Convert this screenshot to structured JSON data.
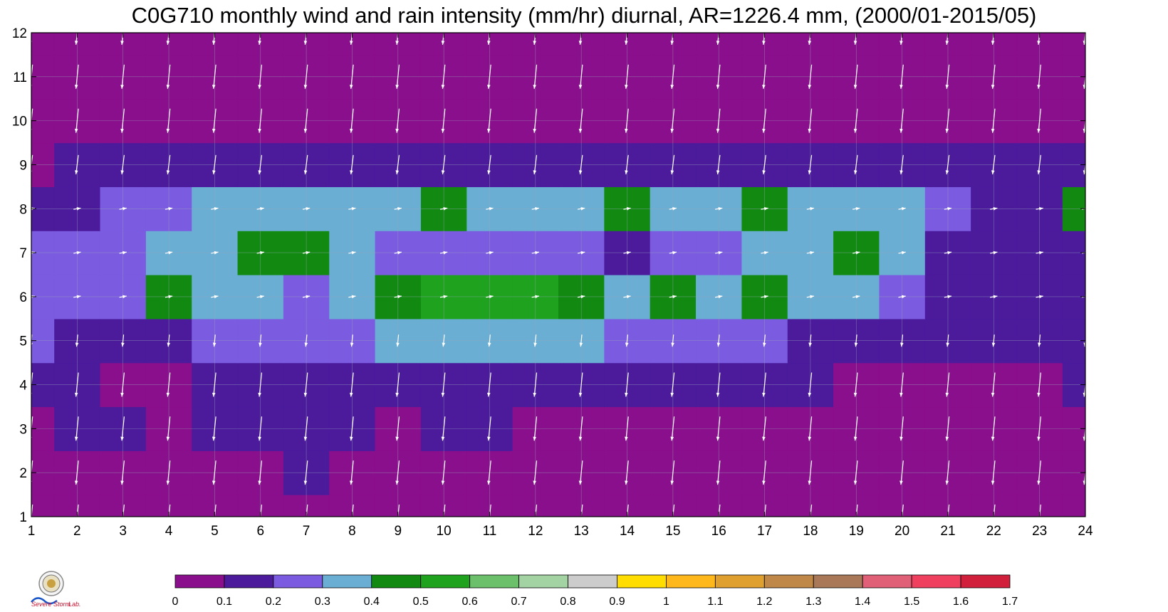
{
  "chart_data": {
    "type": "heatmap",
    "title": "C0G710 monthly wind and rain intensity (mm/hr) diurnal, AR=1226.4 mm, (2000/01-2015/05)",
    "xlabel": "",
    "ylabel": "",
    "x_ticks": [
      1,
      2,
      3,
      4,
      5,
      6,
      7,
      8,
      9,
      10,
      11,
      12,
      13,
      14,
      15,
      16,
      17,
      18,
      19,
      20,
      21,
      22,
      23,
      24
    ],
    "y_ticks": [
      1,
      2,
      3,
      4,
      5,
      6,
      7,
      8,
      9,
      10,
      11,
      12
    ],
    "xlim": [
      1,
      24
    ],
    "ylim": [
      1,
      12
    ],
    "grid": true,
    "colorbar": {
      "levels": [
        "0",
        "0.1",
        "0.2",
        "0.3",
        "0.4",
        "0.5",
        "0.6",
        "0.7",
        "0.8",
        "0.9",
        "1",
        "1.1",
        "1.2",
        "1.3",
        "1.4",
        "1.5",
        "1.6",
        "1.7"
      ],
      "colors": [
        "#8a0f8c",
        "#4b1b9c",
        "#7b5be0",
        "#6aaed4",
        "#128a12",
        "#1fa31f",
        "#6cc06c",
        "#a3d3a3",
        "#cccccc",
        "#ffdd00",
        "#ffb81c",
        "#e0a030",
        "#c08848",
        "#a87858",
        "#e06078",
        "#f04060",
        "#d0203c"
      ]
    },
    "rows": [
      {
        "month": 1,
        "values": [
          0.05,
          0.05,
          0.05,
          0.05,
          0.05,
          0.05,
          0.05,
          0.05,
          0.05,
          0.05,
          0.05,
          0.05,
          0.05,
          0.05,
          0.05,
          0.05,
          0.05,
          0.05,
          0.05,
          0.05,
          0.05,
          0.05,
          0.05,
          0.05
        ]
      },
      {
        "month": 2,
        "values": [
          0.05,
          0.05,
          0.05,
          0.05,
          0.05,
          0.05,
          0.12,
          0.05,
          0.05,
          0.05,
          0.05,
          0.05,
          0.05,
          0.05,
          0.05,
          0.05,
          0.05,
          0.05,
          0.05,
          0.05,
          0.05,
          0.05,
          0.05,
          0.05
        ]
      },
      {
        "month": 3,
        "values": [
          0.08,
          0.12,
          0.12,
          0.05,
          0.12,
          0.12,
          0.12,
          0.12,
          0.08,
          0.12,
          0.12,
          0.08,
          0.05,
          0.05,
          0.05,
          0.05,
          0.08,
          0.05,
          0.05,
          0.05,
          0.05,
          0.05,
          0.05,
          0.05
        ]
      },
      {
        "month": 4,
        "values": [
          0.15,
          0.15,
          0.05,
          0.05,
          0.15,
          0.15,
          0.15,
          0.15,
          0.15,
          0.15,
          0.15,
          0.15,
          0.12,
          0.12,
          0.12,
          0.12,
          0.15,
          0.12,
          0.08,
          0.05,
          0.08,
          0.05,
          0.05,
          0.12
        ]
      },
      {
        "month": 5,
        "values": [
          0.25,
          0.15,
          0.15,
          0.15,
          0.25,
          0.25,
          0.25,
          0.25,
          0.35,
          0.35,
          0.35,
          0.35,
          0.35,
          0.25,
          0.25,
          0.25,
          0.25,
          0.15,
          0.15,
          0.15,
          0.15,
          0.15,
          0.15,
          0.15
        ]
      },
      {
        "month": 6,
        "values": [
          0.25,
          0.25,
          0.25,
          0.42,
          0.35,
          0.35,
          0.25,
          0.35,
          0.45,
          0.55,
          0.55,
          0.58,
          0.45,
          0.35,
          0.42,
          0.35,
          0.42,
          0.35,
          0.35,
          0.25,
          0.15,
          0.15,
          0.15,
          0.15
        ]
      },
      {
        "month": 7,
        "values": [
          0.25,
          0.25,
          0.25,
          0.35,
          0.35,
          0.42,
          0.42,
          0.35,
          0.25,
          0.25,
          0.25,
          0.25,
          0.25,
          0.15,
          0.25,
          0.25,
          0.35,
          0.35,
          0.42,
          0.35,
          0.15,
          0.15,
          0.15,
          0.15
        ]
      },
      {
        "month": 8,
        "values": [
          0.15,
          0.15,
          0.25,
          0.25,
          0.35,
          0.35,
          0.35,
          0.35,
          0.35,
          0.45,
          0.35,
          0.35,
          0.35,
          0.45,
          0.35,
          0.35,
          0.45,
          0.35,
          0.35,
          0.35,
          0.25,
          0.15,
          0.15,
          0.45
        ]
      },
      {
        "month": 9,
        "values": [
          0.05,
          0.15,
          0.15,
          0.15,
          0.15,
          0.15,
          0.15,
          0.15,
          0.15,
          0.15,
          0.15,
          0.15,
          0.15,
          0.15,
          0.15,
          0.15,
          0.15,
          0.15,
          0.15,
          0.15,
          0.15,
          0.15,
          0.15,
          0.15
        ]
      },
      {
        "month": 10,
        "values": [
          0.05,
          0.05,
          0.05,
          0.05,
          0.05,
          0.05,
          0.05,
          0.05,
          0.05,
          0.05,
          0.05,
          0.05,
          0.05,
          0.05,
          0.05,
          0.05,
          0.05,
          0.05,
          0.05,
          0.05,
          0.05,
          0.05,
          0.05,
          0.05
        ]
      },
      {
        "month": 11,
        "values": [
          0.05,
          0.05,
          0.05,
          0.05,
          0.05,
          0.05,
          0.05,
          0.05,
          0.05,
          0.05,
          0.05,
          0.05,
          0.05,
          0.05,
          0.05,
          0.05,
          0.05,
          0.05,
          0.05,
          0.05,
          0.05,
          0.05,
          0.05,
          0.05
        ]
      },
      {
        "month": 12,
        "values": [
          0.05,
          0.05,
          0.05,
          0.05,
          0.05,
          0.05,
          0.05,
          0.05,
          0.05,
          0.05,
          0.05,
          0.05,
          0.05,
          0.05,
          0.05,
          0.05,
          0.05,
          0.05,
          0.05,
          0.05,
          0.05,
          0.05,
          0.05,
          0.05
        ]
      }
    ],
    "wind": {
      "units": "m/s",
      "bands": [
        {
          "months": [
            1,
            2,
            3,
            4,
            10,
            11,
            12
          ],
          "u": -0.1,
          "v": -1.0
        },
        {
          "months": [
            9
          ],
          "u": -0.1,
          "v": -0.8
        },
        {
          "months": [
            5
          ],
          "u": -0.05,
          "v": -0.5
        },
        {
          "months": [
            6,
            7,
            8
          ],
          "u": 0.3,
          "v": 0.05
        }
      ]
    }
  }
}
